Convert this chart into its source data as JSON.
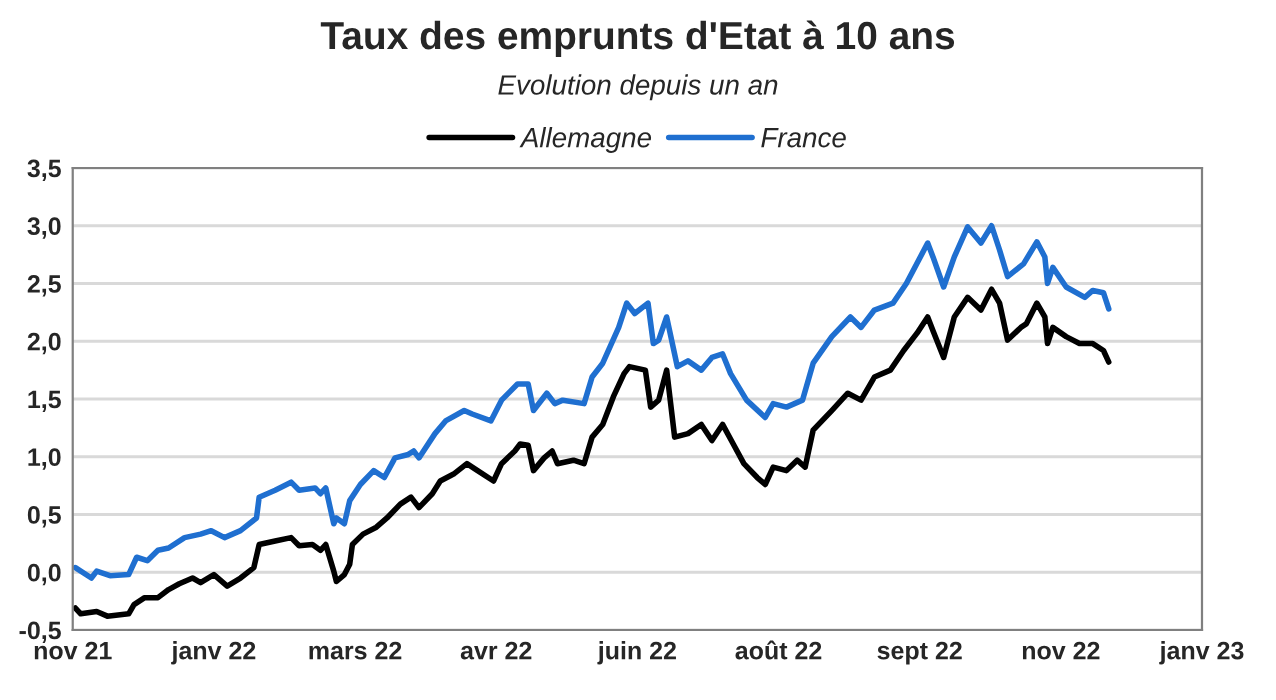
{
  "chart_data": {
    "type": "line",
    "title": "Taux des emprunts d'Etat à 10 ans",
    "subtitle": "Evolution depuis un an",
    "legend": "top",
    "grid": "y",
    "xlim": [
      "2021-11-15",
      "2023-01-13"
    ],
    "xticks": [
      {
        "value": "2021-11-15",
        "label": "nov 21"
      },
      {
        "value": "2022-01-07",
        "label": "janv 22"
      },
      {
        "value": "2022-03-01",
        "label": "mars 22"
      },
      {
        "value": "2022-04-23",
        "label": "avr 22"
      },
      {
        "value": "2022-06-15",
        "label": "juin 22"
      },
      {
        "value": "2022-08-07",
        "label": "août 22"
      },
      {
        "value": "2022-09-29",
        "label": "sept 22"
      },
      {
        "value": "2022-11-21",
        "label": "nov 22"
      },
      {
        "value": "2023-01-13",
        "label": "janv 23"
      }
    ],
    "ylim": [
      -0.5,
      3.5
    ],
    "yticks": [
      {
        "value": -0.5,
        "label": "-0,5"
      },
      {
        "value": 0,
        "label": "0,0"
      },
      {
        "value": 0.5,
        "label": "0,5"
      },
      {
        "value": 1,
        "label": "1,0"
      },
      {
        "value": 1.5,
        "label": "1,5"
      },
      {
        "value": 2,
        "label": "2,0"
      },
      {
        "value": 2.5,
        "label": "2,5"
      },
      {
        "value": 3,
        "label": "3,0"
      },
      {
        "value": 3.5,
        "label": "3,5"
      }
    ],
    "series": [
      {
        "name": "Allemagne",
        "color": "#000000",
        "x": [
          "2021-11-16",
          "2021-11-18",
          "2021-11-24",
          "2021-11-28",
          "2021-12-06",
          "2021-12-08",
          "2021-12-12",
          "2021-12-17",
          "2021-12-21",
          "2021-12-25",
          "2021-12-30",
          "2022-01-02",
          "2022-01-07",
          "2022-01-12",
          "2022-01-17",
          "2022-01-22",
          "2022-01-24",
          "2022-01-30",
          "2022-02-05",
          "2022-02-08",
          "2022-02-13",
          "2022-02-16",
          "2022-02-18",
          "2022-02-21",
          "2022-02-22",
          "2022-02-25",
          "2022-02-27",
          "2022-02-28",
          "2022-03-04",
          "2022-03-09",
          "2022-03-13",
          "2022-03-18",
          "2022-03-22",
          "2022-03-25",
          "2022-03-30",
          "2022-04-02",
          "2022-04-07",
          "2022-04-12",
          "2022-04-16",
          "2022-04-22",
          "2022-04-25",
          "2022-04-30",
          "2022-05-02",
          "2022-05-05",
          "2022-05-07",
          "2022-05-11",
          "2022-05-14",
          "2022-05-16",
          "2022-05-22",
          "2022-05-26",
          "2022-05-29",
          "2022-06-02",
          "2022-06-06",
          "2022-06-10",
          "2022-06-12",
          "2022-06-18",
          "2022-06-20",
          "2022-06-23",
          "2022-06-26",
          "2022-06-29",
          "2022-07-04",
          "2022-07-09",
          "2022-07-13",
          "2022-07-17",
          "2022-07-21",
          "2022-07-25",
          "2022-07-30",
          "2022-08-02",
          "2022-08-05",
          "2022-08-10",
          "2022-08-14",
          "2022-08-17",
          "2022-08-20",
          "2022-08-27",
          "2022-09-02",
          "2022-09-07",
          "2022-09-12",
          "2022-09-18",
          "2022-09-23",
          "2022-09-28",
          "2022-10-02",
          "2022-10-04",
          "2022-10-08",
          "2022-10-12",
          "2022-10-17",
          "2022-10-22",
          "2022-10-26",
          "2022-10-29",
          "2022-11-01",
          "2022-11-06",
          "2022-11-08",
          "2022-11-12",
          "2022-11-15",
          "2022-11-16",
          "2022-11-18",
          "2022-11-23",
          "2022-11-28",
          "2022-12-03",
          "2022-12-07",
          "2022-12-09"
        ],
        "values": [
          -0.31,
          -0.36,
          -0.34,
          -0.38,
          -0.36,
          -0.28,
          -0.22,
          -0.22,
          -0.15,
          -0.1,
          -0.05,
          -0.09,
          -0.02,
          -0.12,
          -0.05,
          0.04,
          0.24,
          0.27,
          0.3,
          0.23,
          0.24,
          0.19,
          0.24,
          0.01,
          -0.08,
          -0.02,
          0.07,
          0.24,
          0.33,
          0.39,
          0.47,
          0.59,
          0.65,
          0.56,
          0.68,
          0.79,
          0.85,
          0.94,
          0.88,
          0.79,
          0.94,
          1.05,
          1.11,
          1.1,
          0.88,
          0.99,
          1.05,
          0.94,
          0.97,
          0.94,
          1.17,
          1.28,
          1.52,
          1.72,
          1.78,
          1.75,
          1.43,
          1.49,
          1.75,
          1.17,
          1.2,
          1.28,
          1.14,
          1.28,
          1.11,
          0.94,
          0.82,
          0.76,
          0.91,
          0.88,
          0.97,
          0.91,
          1.23,
          1.4,
          1.55,
          1.49,
          1.69,
          1.75,
          1.92,
          2.07,
          2.21,
          2.09,
          1.86,
          2.21,
          2.38,
          2.27,
          2.45,
          2.33,
          2.01,
          2.12,
          2.15,
          2.33,
          2.21,
          1.98,
          2.12,
          2.04,
          1.98,
          1.98,
          1.92,
          1.82
        ]
      },
      {
        "name": "France",
        "color": "#1f6fd0",
        "x": [
          "2021-11-16",
          "2021-11-22",
          "2021-11-24",
          "2021-11-29",
          "2021-12-06",
          "2021-12-09",
          "2021-12-13",
          "2021-12-17",
          "2021-12-21",
          "2021-12-27",
          "2022-01-02",
          "2022-01-06",
          "2022-01-11",
          "2022-01-17",
          "2022-01-23",
          "2022-01-24",
          "2022-01-30",
          "2022-02-05",
          "2022-02-08",
          "2022-02-14",
          "2022-02-16",
          "2022-02-18",
          "2022-02-21",
          "2022-02-22",
          "2022-02-25",
          "2022-02-27",
          "2022-03-03",
          "2022-03-08",
          "2022-03-12",
          "2022-03-16",
          "2022-03-21",
          "2022-03-23",
          "2022-03-25",
          "2022-03-31",
          "2022-04-04",
          "2022-04-11",
          "2022-04-14",
          "2022-04-21",
          "2022-04-25",
          "2022-05-01",
          "2022-05-05",
          "2022-05-07",
          "2022-05-12",
          "2022-05-15",
          "2022-05-18",
          "2022-05-26",
          "2022-05-29",
          "2022-06-02",
          "2022-06-08",
          "2022-06-11",
          "2022-06-14",
          "2022-06-19",
          "2022-06-21",
          "2022-06-23",
          "2022-06-26",
          "2022-06-30",
          "2022-07-04",
          "2022-07-09",
          "2022-07-13",
          "2022-07-17",
          "2022-07-20",
          "2022-07-26",
          "2022-08-02",
          "2022-08-05",
          "2022-08-10",
          "2022-08-16",
          "2022-08-20",
          "2022-08-27",
          "2022-09-03",
          "2022-09-07",
          "2022-09-12",
          "2022-09-19",
          "2022-09-24",
          "2022-10-02",
          "2022-10-04",
          "2022-10-08",
          "2022-10-12",
          "2022-10-17",
          "2022-10-22",
          "2022-10-26",
          "2022-10-29",
          "2022-11-01",
          "2022-11-07",
          "2022-11-12",
          "2022-11-15",
          "2022-11-16",
          "2022-11-18",
          "2022-11-23",
          "2022-11-30",
          "2022-12-03",
          "2022-12-07",
          "2022-12-09"
        ],
        "values": [
          0.04,
          -0.05,
          0.01,
          -0.03,
          -0.02,
          0.13,
          0.1,
          0.19,
          0.21,
          0.3,
          0.33,
          0.36,
          0.3,
          0.36,
          0.47,
          0.65,
          0.71,
          0.78,
          0.71,
          0.73,
          0.68,
          0.73,
          0.42,
          0.47,
          0.42,
          0.62,
          0.76,
          0.88,
          0.82,
          0.99,
          1.02,
          1.05,
          0.99,
          1.2,
          1.31,
          1.4,
          1.37,
          1.31,
          1.49,
          1.63,
          1.63,
          1.4,
          1.55,
          1.46,
          1.49,
          1.46,
          1.69,
          1.81,
          2.12,
          2.33,
          2.24,
          2.33,
          1.98,
          2.01,
          2.21,
          1.78,
          1.83,
          1.75,
          1.86,
          1.89,
          1.72,
          1.49,
          1.34,
          1.46,
          1.43,
          1.49,
          1.81,
          2.04,
          2.21,
          2.12,
          2.27,
          2.33,
          2.5,
          2.85,
          2.73,
          2.47,
          2.73,
          2.99,
          2.85,
          3.0,
          2.79,
          2.56,
          2.67,
          2.86,
          2.73,
          2.5,
          2.64,
          2.47,
          2.38,
          2.44,
          2.42,
          2.28
        ]
      }
    ]
  }
}
